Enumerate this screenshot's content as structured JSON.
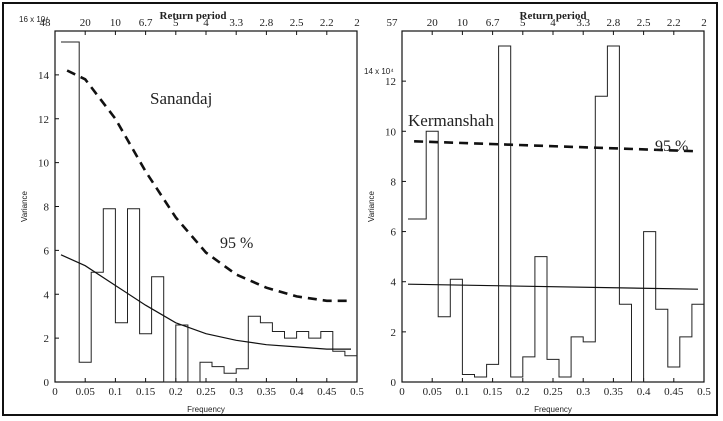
{
  "chart_data": [
    {
      "type": "line",
      "station": "Sanandaj",
      "top_axis_label": "Return period",
      "top_tick_labels": [
        "48",
        "20",
        "10",
        "6.7",
        "5",
        "4",
        "3.3",
        "2.8",
        "2.5",
        "2.2",
        "2"
      ],
      "xlabel": "Frequency",
      "ylabel": "Variance",
      "y_scale_label": "16 x 10⁴",
      "xlim": [
        0,
        0.5
      ],
      "ylim": [
        0,
        16
      ],
      "x_ticks": [
        "0",
        "0.05",
        "0.1",
        "0.15",
        "0.2",
        "0.25",
        "0.3",
        "0.35",
        "0.4",
        "0.45",
        "0.5"
      ],
      "y_ticks": [
        "0",
        "2",
        "4",
        "6",
        "8",
        "10",
        "12",
        "14"
      ],
      "confidence_label": "95 %",
      "grid": false,
      "series": [
        {
          "style": "step",
          "x": [
            0.01,
            0.02,
            0.04,
            0.06,
            0.08,
            0.1,
            0.12,
            0.14,
            0.16,
            0.18,
            0.2,
            0.22,
            0.24,
            0.26,
            0.28,
            0.3,
            0.32,
            0.34,
            0.36,
            0.38,
            0.4,
            0.42,
            0.44,
            0.46,
            0.48
          ],
          "values": [
            15.5,
            15.5,
            0.9,
            5.0,
            7.9,
            2.7,
            7.9,
            2.2,
            4.8,
            0.0,
            2.6,
            0.0,
            0.9,
            0.7,
            0.4,
            0.6,
            3.0,
            2.7,
            2.3,
            2.0,
            2.3,
            2.0,
            2.3,
            1.4,
            1.2
          ]
        },
        {
          "style": "dashed",
          "x": [
            0.02,
            0.05,
            0.1,
            0.15,
            0.2,
            0.25,
            0.3,
            0.35,
            0.4,
            0.45,
            0.49
          ],
          "values": [
            14.2,
            13.8,
            12.0,
            9.6,
            7.5,
            5.9,
            4.9,
            4.3,
            3.9,
            3.7,
            3.7
          ]
        },
        {
          "style": "solid",
          "x": [
            0.01,
            0.05,
            0.1,
            0.15,
            0.2,
            0.25,
            0.3,
            0.35,
            0.4,
            0.45,
            0.49
          ],
          "values": [
            5.8,
            5.3,
            4.4,
            3.5,
            2.7,
            2.2,
            1.9,
            1.7,
            1.6,
            1.5,
            1.5
          ]
        }
      ]
    },
    {
      "type": "line",
      "station": "Kermanshah",
      "top_axis_label": "Return period",
      "top_tick_labels": [
        "57",
        "20",
        "10",
        "6.7",
        "5",
        "4",
        "3.3",
        "2.8",
        "2.5",
        "2.2",
        "2"
      ],
      "xlabel": "Frequency",
      "ylabel": "Variance",
      "y_scale_label": "14 x 10⁴",
      "xlim": [
        0,
        0.5
      ],
      "ylim": [
        0,
        14
      ],
      "x_ticks": [
        "0",
        "0.05",
        "0.1",
        "0.15",
        "0.2",
        "0.25",
        "0.3",
        "0.35",
        "0.4",
        "0.45",
        "0.5"
      ],
      "y_ticks": [
        "0",
        "2",
        "4",
        "6",
        "8",
        "10",
        "12"
      ],
      "confidence_label": "95 %",
      "grid": false,
      "series": [
        {
          "style": "step",
          "x": [
            0.01,
            0.02,
            0.04,
            0.06,
            0.08,
            0.1,
            0.12,
            0.14,
            0.16,
            0.18,
            0.2,
            0.22,
            0.24,
            0.26,
            0.28,
            0.3,
            0.32,
            0.34,
            0.36,
            0.38,
            0.4,
            0.42,
            0.44,
            0.46,
            0.48
          ],
          "values": [
            6.5,
            6.5,
            10.0,
            2.6,
            4.1,
            0.3,
            0.2,
            0.7,
            13.4,
            0.2,
            1.0,
            5.0,
            0.9,
            0.2,
            1.8,
            1.6,
            11.4,
            13.4,
            3.1,
            0.0,
            6.0,
            2.9,
            0.6,
            1.8,
            3.1
          ]
        },
        {
          "style": "dashed",
          "x": [
            0.02,
            0.49
          ],
          "values": [
            9.6,
            9.2
          ]
        },
        {
          "style": "solid",
          "x": [
            0.01,
            0.49
          ],
          "values": [
            3.9,
            3.7
          ]
        }
      ]
    }
  ]
}
